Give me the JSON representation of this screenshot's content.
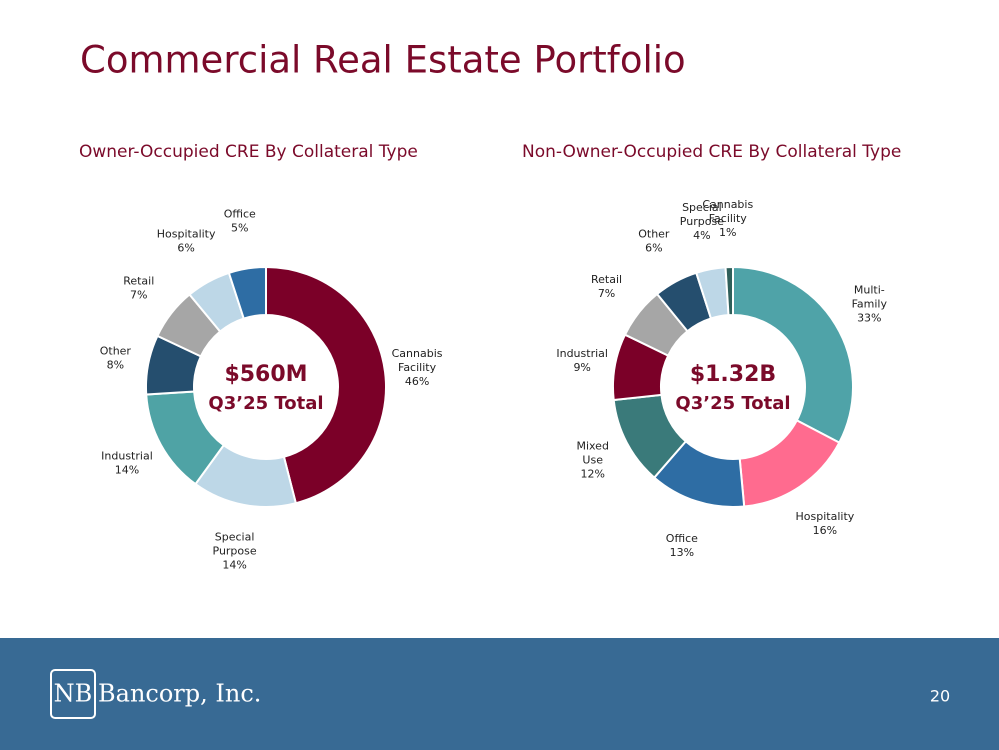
{
  "title": "Commercial Real Estate Portfolio",
  "logo_mark": "NB",
  "logo_text": "Bancorp, Inc.",
  "page_number": "20",
  "chart_data": [
    {
      "type": "donut",
      "title": "Owner-Occupied CRE By Collateral Type",
      "center_title": "$560M",
      "center_subtitle": "Q3’25 Total",
      "categories": [
        "Cannabis Facility",
        "Special Purpose",
        "Industrial",
        "Other",
        "Retail",
        "Hospitality",
        "Office"
      ],
      "values": [
        46,
        14,
        14,
        8,
        7,
        6,
        5
      ],
      "value_labels": [
        "46%",
        "14%",
        "14%",
        "8%",
        "7%",
        "6%",
        "5%"
      ],
      "colors": [
        "#7b0028",
        "#bdd7e7",
        "#4fa3a5",
        "#254e6e",
        "#a6a6a6",
        "#bdd7e7",
        "#2e6da4"
      ]
    },
    {
      "type": "donut",
      "title": "Non-Owner-Occupied CRE By Collateral Type",
      "center_title": "$1.32B",
      "center_subtitle": "Q3’25 Total",
      "categories": [
        "Multi-Family",
        "Hospitality",
        "Office",
        "Mixed Use",
        "Industrial",
        "Retail",
        "Other",
        "Special Purpose",
        "Cannabis Facility"
      ],
      "values": [
        33,
        16,
        13,
        12,
        9,
        7,
        6,
        4,
        1
      ],
      "value_labels": [
        "33%",
        "16%",
        "13%",
        "12%",
        "9%",
        "7%",
        "6%",
        "4%",
        "1%"
      ],
      "colors": [
        "#4fa3a8",
        "#ff6b8f",
        "#2e6da4",
        "#3a7a7a",
        "#7b0028",
        "#a6a6a6",
        "#254e6e",
        "#bdd7e7",
        "#2f5f5a"
      ]
    }
  ]
}
